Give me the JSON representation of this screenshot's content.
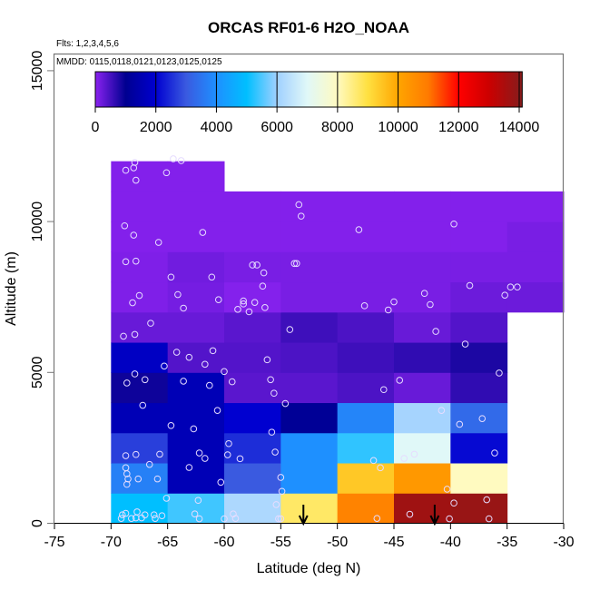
{
  "chart_data": {
    "type": "heatmap",
    "title": "ORCAS RF01-6 H2O_NOAA",
    "subtitle_flights": "Flts: 1,2,3,4,5,6",
    "subtitle_dates": "MMDD: 0115,0118,0121,0123,0125,0125",
    "xlabel": "Latitude (deg N)",
    "ylabel": "Altitude (m)",
    "xlim": [
      -75,
      -30
    ],
    "ylim": [
      0,
      15000
    ],
    "x_ticks": [
      "-75",
      "-70",
      "-65",
      "-60",
      "-55",
      "-50",
      "-45",
      "-40",
      "-35",
      "-30"
    ],
    "y_ticks": [
      "0",
      "5000",
      "10000",
      "15000"
    ],
    "colorbar": {
      "range": [
        0,
        14100
      ],
      "ticks": [
        "0",
        "2000",
        "4000",
        "6000",
        "8000",
        "10000",
        "12000",
        "14000"
      ],
      "stops": [
        [
          0,
          "#8a22f0"
        ],
        [
          1000,
          "#000090"
        ],
        [
          2000,
          "#0000d0"
        ],
        [
          3000,
          "#3a5ae0"
        ],
        [
          4000,
          "#1e90ff"
        ],
        [
          5000,
          "#00bfff"
        ],
        [
          6000,
          "#a0d0ff"
        ],
        [
          7000,
          "#e0f8f8"
        ],
        [
          8000,
          "#fffac0"
        ],
        [
          9000,
          "#ffe040"
        ],
        [
          10000,
          "#ffa500"
        ],
        [
          11000,
          "#ff7a00"
        ],
        [
          12000,
          "#ff0000"
        ],
        [
          13000,
          "#cc0000"
        ],
        [
          14000,
          "#8b1a1a"
        ],
        [
          14100,
          "#8b1a1a"
        ]
      ]
    },
    "cell_lat_edges": [
      -70,
      -65,
      -60,
      -55,
      -50,
      -45,
      -40,
      -35,
      -30
    ],
    "cells": [
      {
        "alt": [
          0,
          1000
        ],
        "values": [
          5000,
          5400,
          6200,
          8700,
          10800,
          13700,
          13800
        ]
      },
      {
        "alt": [
          1000,
          2000
        ],
        "values": [
          3700,
          1600,
          3000,
          4000,
          9400,
          10300,
          8000
        ]
      },
      {
        "alt": [
          2000,
          3000
        ],
        "values": [
          2700,
          1600,
          2500,
          4000,
          5300,
          7000,
          2100
        ]
      },
      {
        "alt": [
          3000,
          4000
        ],
        "values": [
          1600,
          1600,
          2000,
          1100,
          3800,
          6100,
          3300
        ]
      },
      {
        "alt": [
          4000,
          5000
        ],
        "values": [
          900,
          1600,
          350,
          350,
          450,
          250,
          650
        ]
      },
      {
        "alt": [
          5000,
          6000
        ],
        "values": [
          1800,
          400,
          400,
          450,
          550,
          650,
          800
        ]
      },
      {
        "alt": [
          6000,
          7000
        ],
        "values": [
          250,
          250,
          350,
          550,
          450,
          250,
          400
        ]
      },
      {
        "alt": [
          7000,
          8000
        ],
        "values": [
          80,
          150,
          40,
          120,
          120,
          120,
          220,
          220
        ]
      },
      {
        "alt": [
          8000,
          9000
        ],
        "values": [
          80,
          180,
          120,
          120,
          120,
          120,
          120,
          120
        ]
      },
      {
        "alt": [
          9000,
          10000
        ],
        "values": [
          50,
          50,
          50,
          50,
          50,
          50,
          50,
          120
        ]
      },
      {
        "alt": [
          10000,
          11000
        ],
        "values": [
          50,
          50,
          50,
          50,
          50,
          50,
          50,
          50
        ]
      },
      {
        "alt": [
          11000,
          12000
        ],
        "values": [
          50,
          50
        ]
      }
    ],
    "points": [
      [
        -68.7,
        11700
      ],
      [
        -68.0,
        11780
      ],
      [
        -67.9,
        11960
      ],
      [
        -67.8,
        11370
      ],
      [
        -65.1,
        11620
      ],
      [
        -64.5,
        12080
      ],
      [
        -63.8,
        12020
      ],
      [
        -53.4,
        10560
      ],
      [
        -53.2,
        10180
      ],
      [
        -68.8,
        9860
      ],
      [
        -68.0,
        9550
      ],
      [
        -61.9,
        9640
      ],
      [
        -65.8,
        9310
      ],
      [
        -48.1,
        9730
      ],
      [
        -39.7,
        9920
      ],
      [
        -68.7,
        8670
      ],
      [
        -67.8,
        8690
      ],
      [
        -64.7,
        8160
      ],
      [
        -61.1,
        8160
      ],
      [
        -57.5,
        8560
      ],
      [
        -57.1,
        8560
      ],
      [
        -56.5,
        8300
      ],
      [
        -53.8,
        8610
      ],
      [
        -53.6,
        8610
      ],
      [
        -56.6,
        7860
      ],
      [
        -67.5,
        7550
      ],
      [
        -68.1,
        7310
      ],
      [
        -64.1,
        7580
      ],
      [
        -63.6,
        7130
      ],
      [
        -60.5,
        7410
      ],
      [
        -58.3,
        7370
      ],
      [
        -58.3,
        7270
      ],
      [
        -58.8,
        7090
      ],
      [
        -57.8,
        7010
      ],
      [
        -57.3,
        7320
      ],
      [
        -56.4,
        7150
      ],
      [
        -47.6,
        7210
      ],
      [
        -45.5,
        7070
      ],
      [
        -45.0,
        7340
      ],
      [
        -42.3,
        7620
      ],
      [
        -41.8,
        7250
      ],
      [
        -38.3,
        7880
      ],
      [
        -35.2,
        7560
      ],
      [
        -34.7,
        7830
      ],
      [
        -34.1,
        7830
      ],
      [
        -66.5,
        6630
      ],
      [
        -68.9,
        6200
      ],
      [
        -67.9,
        6260
      ],
      [
        -54.2,
        6420
      ],
      [
        -41.3,
        6360
      ],
      [
        -64.2,
        5670
      ],
      [
        -63.1,
        5500
      ],
      [
        -61.0,
        5720
      ],
      [
        -61.7,
        5270
      ],
      [
        -65.3,
        5210
      ],
      [
        -56.2,
        5420
      ],
      [
        -38.7,
        5940
      ],
      [
        -67.9,
        4950
      ],
      [
        -68.6,
        4650
      ],
      [
        -67.0,
        4760
      ],
      [
        -63.6,
        4710
      ],
      [
        -61.3,
        4570
      ],
      [
        -60.0,
        5030
      ],
      [
        -59.3,
        4690
      ],
      [
        -55.9,
        4760
      ],
      [
        -55.6,
        4310
      ],
      [
        -45.9,
        4430
      ],
      [
        -44.5,
        4740
      ],
      [
        -35.7,
        4980
      ],
      [
        -67.2,
        3910
      ],
      [
        -60.6,
        3740
      ],
      [
        -54.6,
        3970
      ],
      [
        -64.7,
        3240
      ],
      [
        -62.7,
        3130
      ],
      [
        -55.8,
        3020
      ],
      [
        -40.8,
        3740
      ],
      [
        -39.2,
        3280
      ],
      [
        -37.2,
        3470
      ],
      [
        -68.7,
        2240
      ],
      [
        -67.8,
        2280
      ],
      [
        -65.7,
        2290
      ],
      [
        -62.2,
        2330
      ],
      [
        -61.7,
        2150
      ],
      [
        -59.7,
        2270
      ],
      [
        -59.6,
        2640
      ],
      [
        -58.6,
        2140
      ],
      [
        -55.5,
        2360
      ],
      [
        -43.2,
        2290
      ],
      [
        -44.1,
        2150
      ],
      [
        -36.1,
        2330
      ],
      [
        -46.8,
        2080
      ],
      [
        -66.6,
        1950
      ],
      [
        -68.7,
        1840
      ],
      [
        -68.6,
        1640
      ],
      [
        -68.5,
        1470
      ],
      [
        -68.6,
        1290
      ],
      [
        -67.6,
        1470
      ],
      [
        -65.9,
        1470
      ],
      [
        -63.1,
        1850
      ],
      [
        -60.3,
        1360
      ],
      [
        -55.0,
        1520
      ],
      [
        -46.2,
        1840
      ],
      [
        -54.9,
        1060
      ],
      [
        -40.3,
        1130
      ],
      [
        -65.1,
        830
      ],
      [
        -62.3,
        760
      ],
      [
        -55.4,
        620
      ],
      [
        -39.7,
        670
      ],
      [
        -36.8,
        780
      ],
      [
        -69.0,
        280
      ],
      [
        -68.7,
        330
      ],
      [
        -67.7,
        380
      ],
      [
        -67.0,
        280
      ],
      [
        -66.2,
        280
      ],
      [
        -65.5,
        250
      ],
      [
        -69.1,
        160
      ],
      [
        -68.2,
        160
      ],
      [
        -67.8,
        180
      ],
      [
        -67.3,
        180
      ],
      [
        -66.1,
        160
      ],
      [
        -62.6,
        310
      ],
      [
        -62.2,
        150
      ],
      [
        -60.0,
        150
      ],
      [
        -59.2,
        310
      ],
      [
        -59.0,
        160
      ],
      [
        -55.2,
        150
      ],
      [
        -55.0,
        150
      ],
      [
        -46.5,
        160
      ],
      [
        -43.6,
        300
      ],
      [
        -40.1,
        150
      ],
      [
        -36.6,
        150
      ]
    ],
    "arrows_lat": [
      -53.0,
      -41.4
    ]
  }
}
